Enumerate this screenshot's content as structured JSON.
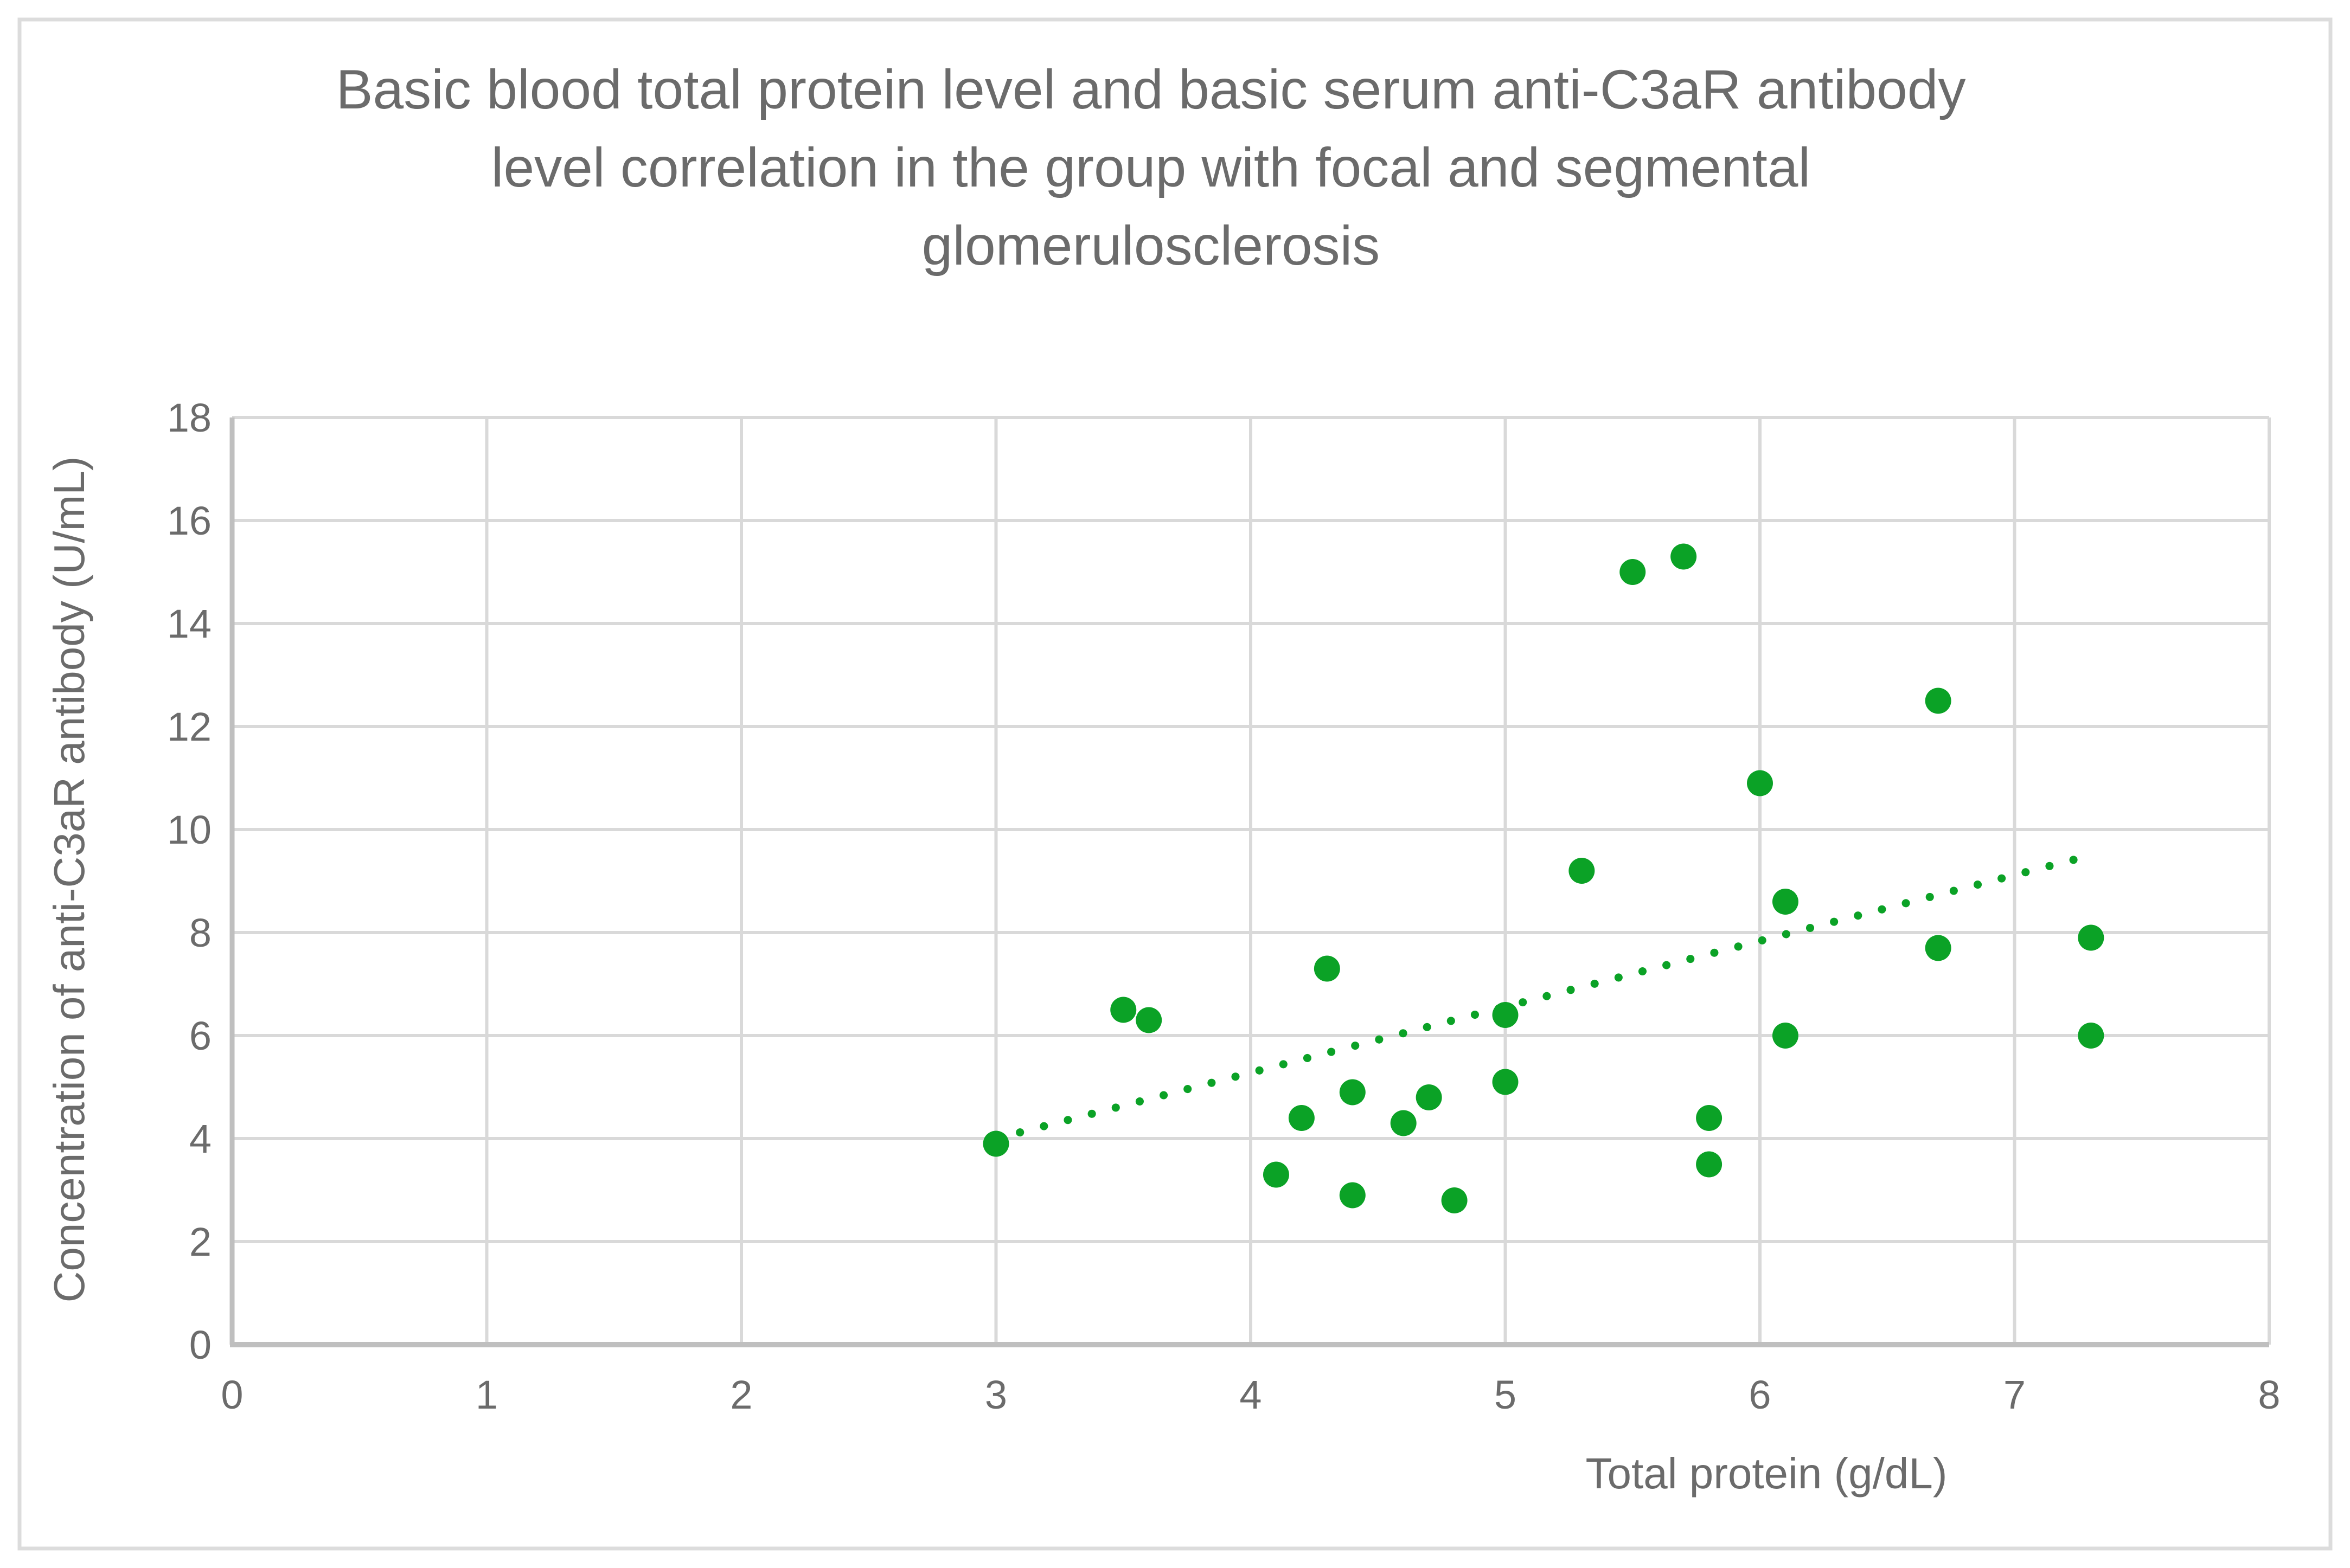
{
  "chart_data": {
    "type": "scatter",
    "title": "Basic blood total protein level and basic serum anti-C3aR antibody level correlation in the group with focal and segmental glomerulosclerosis",
    "title_lines": [
      "Basic blood total protein level and basic serum anti-C3aR antibody",
      "level correlation in the group with focal and segmental",
      "glomerulosclerosis"
    ],
    "xlabel": "Total protein (g/dL)",
    "ylabel": "Concentration of anti-C3aR antibody (U/mL)",
    "xlim": [
      0,
      8
    ],
    "ylim": [
      0,
      18
    ],
    "xticks": [
      0,
      1,
      2,
      3,
      4,
      5,
      6,
      7,
      8
    ],
    "yticks": [
      0,
      2,
      4,
      6,
      8,
      10,
      12,
      14,
      16,
      18
    ],
    "grid": true,
    "legend": "none",
    "points": [
      [
        3.0,
        3.9
      ],
      [
        3.5,
        6.5
      ],
      [
        3.6,
        6.3
      ],
      [
        4.1,
        3.3
      ],
      [
        4.2,
        4.4
      ],
      [
        4.3,
        7.3
      ],
      [
        4.4,
        2.9
      ],
      [
        4.4,
        4.9
      ],
      [
        4.6,
        4.3
      ],
      [
        4.7,
        4.8
      ],
      [
        4.8,
        2.8
      ],
      [
        5.0,
        5.1
      ],
      [
        5.0,
        6.4
      ],
      [
        5.3,
        9.2
      ],
      [
        5.5,
        15.0
      ],
      [
        5.7,
        15.3
      ],
      [
        5.8,
        3.5
      ],
      [
        5.8,
        4.4
      ],
      [
        6.0,
        10.9
      ],
      [
        6.1,
        6.0
      ],
      [
        6.1,
        8.6
      ],
      [
        6.7,
        7.7
      ],
      [
        6.7,
        12.5
      ],
      [
        7.3,
        6.0
      ],
      [
        7.3,
        7.9
      ]
    ],
    "trendline": {
      "style": "dotted",
      "x1": 3.0,
      "y1": 4.0,
      "x2": 7.3,
      "y2": 9.5
    },
    "colors": {
      "series": "#0ba226",
      "gridline": "#d9d9d9",
      "axis_line": "#bfbfbf",
      "text": "#6b6b6b",
      "border": "#dcdcdc",
      "background": "#ffffff"
    }
  }
}
